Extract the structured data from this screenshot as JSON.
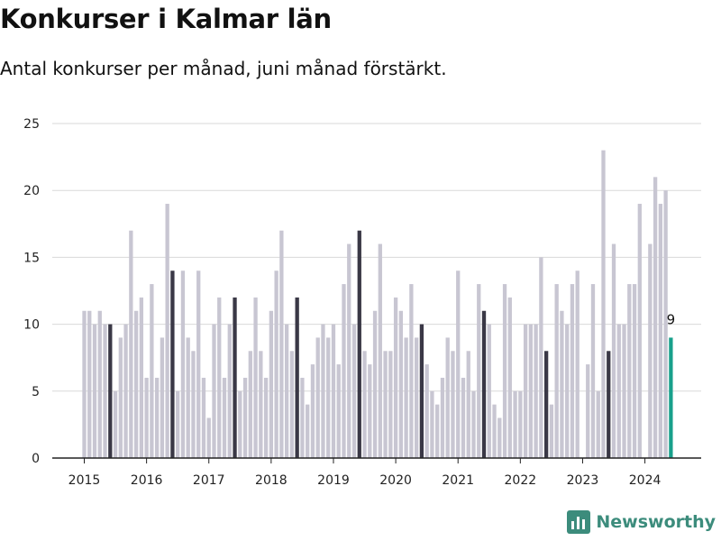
{
  "chart_data": {
    "type": "bar",
    "title": "Konkurser i Kalmar län",
    "subtitle": "Antal konkurser per månad, juni månad förstärkt.",
    "xlabel": "",
    "ylabel": "",
    "ylim": [
      0,
      25
    ],
    "yticks": [
      0,
      5,
      10,
      15,
      20,
      25
    ],
    "xticks": [
      "2015",
      "2016",
      "2017",
      "2018",
      "2019",
      "2020",
      "2021",
      "2022",
      "2023",
      "2024"
    ],
    "start": "2015-01",
    "values": [
      11,
      11,
      10,
      11,
      10,
      10,
      5,
      9,
      10,
      17,
      11,
      12,
      6,
      13,
      6,
      9,
      19,
      14,
      5,
      14,
      9,
      8,
      14,
      6,
      3,
      10,
      12,
      6,
      10,
      12,
      5,
      6,
      8,
      12,
      8,
      6,
      11,
      14,
      17,
      10,
      8,
      12,
      6,
      4,
      7,
      9,
      10,
      9,
      10,
      7,
      13,
      16,
      10,
      17,
      8,
      7,
      11,
      16,
      8,
      8,
      12,
      11,
      9,
      13,
      9,
      10,
      7,
      5,
      4,
      6,
      9,
      8,
      14,
      6,
      8,
      5,
      13,
      11,
      10,
      4,
      3,
      13,
      12,
      5,
      5,
      10,
      10,
      10,
      15,
      8,
      4,
      13,
      11,
      10,
      13,
      14,
      0,
      7,
      13,
      5,
      23,
      8,
      16,
      10,
      10,
      13,
      13,
      19,
      0,
      16,
      21,
      19,
      20,
      9
    ],
    "highlight_month": "juni",
    "data_labels": [
      {
        "index": 113,
        "text": "9"
      }
    ],
    "grid": true,
    "colors": {
      "regular": "#c8c6d2",
      "june": "#3a3846",
      "latest": "#19a08c",
      "grid": "#d9d9d9",
      "axis": "#222222"
    }
  },
  "branding": {
    "logo_text": "Newsworthy",
    "logo_icon": "newsworthy-bar-icon",
    "logo_color": "#3c8c7c"
  }
}
